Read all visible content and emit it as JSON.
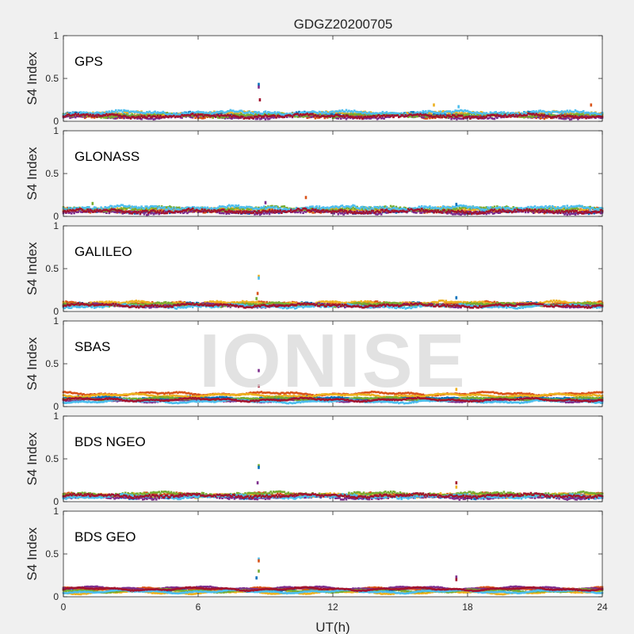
{
  "title": "GDGZ20200705",
  "xlabel": "UT(h)",
  "ylabel": "S4 Index",
  "watermark": "IONISE",
  "colors": [
    "#0072BD",
    "#D95319",
    "#EDB120",
    "#7E2F8E",
    "#77AC30",
    "#4DBEEE",
    "#A2142F"
  ],
  "chart_data": {
    "type": "scatter",
    "title": "GDGZ20200705",
    "xlabel": "UT(h)",
    "ylabel": "S4 Index",
    "xlim": [
      0,
      24
    ],
    "ylim": [
      0,
      1
    ],
    "xticks": [
      "0",
      "6",
      "12",
      "18",
      "24"
    ],
    "yticks": [
      "0",
      "0.5",
      "1"
    ],
    "grid": false,
    "panels": [
      {
        "label": "GPS",
        "baselines": [
          0.08,
          0.06,
          0.09,
          0.05,
          0.07,
          0.1,
          0.06
        ],
        "noise": 0.025,
        "spikes": [
          {
            "x": 8.7,
            "y": 0.43
          },
          {
            "x": 8.7,
            "y": 0.4
          },
          {
            "x": 8.75,
            "y": 0.25
          },
          {
            "x": 16.5,
            "y": 0.19
          },
          {
            "x": 17.6,
            "y": 0.17
          },
          {
            "x": 23.5,
            "y": 0.19
          }
        ]
      },
      {
        "label": "GLONASS",
        "baselines": [
          0.06,
          0.07,
          0.08,
          0.05,
          0.09,
          0.1,
          0.06
        ],
        "noise": 0.03,
        "spikes": [
          {
            "x": 10.8,
            "y": 0.22
          },
          {
            "x": 1.3,
            "y": 0.15
          },
          {
            "x": 17.5,
            "y": 0.14
          },
          {
            "x": 9.0,
            "y": 0.16
          }
        ]
      },
      {
        "label": "GALILEO",
        "baselines": [
          0.08,
          0.09,
          0.1,
          0.07,
          0.08,
          0.06,
          0.07
        ],
        "noise": 0.02,
        "spikes": [
          {
            "x": 8.7,
            "y": 0.41
          },
          {
            "x": 8.7,
            "y": 0.39
          },
          {
            "x": 8.65,
            "y": 0.21
          },
          {
            "x": 8.6,
            "y": 0.15
          },
          {
            "x": 17.5,
            "y": 0.16
          }
        ]
      },
      {
        "label": "SBAS",
        "baselines": [
          0.1,
          0.15,
          0.13,
          0.07,
          0.09,
          0.06,
          0.08
        ],
        "noise": 0.012,
        "spikes": [
          {
            "x": 8.7,
            "y": 0.42
          },
          {
            "x": 8.7,
            "y": 0.24
          },
          {
            "x": 17.5,
            "y": 0.2
          }
        ]
      },
      {
        "label": "BDS NGEO",
        "baselines": [
          0.06,
          0.08,
          0.07,
          0.05,
          0.09,
          0.06,
          0.07
        ],
        "noise": 0.025,
        "spikes": [
          {
            "x": 8.7,
            "y": 0.42
          },
          {
            "x": 8.7,
            "y": 0.4
          },
          {
            "x": 8.65,
            "y": 0.22
          },
          {
            "x": 17.5,
            "y": 0.22
          },
          {
            "x": 17.5,
            "y": 0.17
          }
        ]
      },
      {
        "label": "BDS GEO",
        "baselines": [
          0.08,
          0.09,
          0.05,
          0.1,
          0.07,
          0.06,
          0.09
        ],
        "noise": 0.008,
        "spikes": [
          {
            "x": 8.7,
            "y": 0.44
          },
          {
            "x": 8.7,
            "y": 0.42
          },
          {
            "x": 8.7,
            "y": 0.3
          },
          {
            "x": 8.6,
            "y": 0.22
          },
          {
            "x": 17.5,
            "y": 0.23
          },
          {
            "x": 17.5,
            "y": 0.2
          }
        ]
      }
    ]
  }
}
